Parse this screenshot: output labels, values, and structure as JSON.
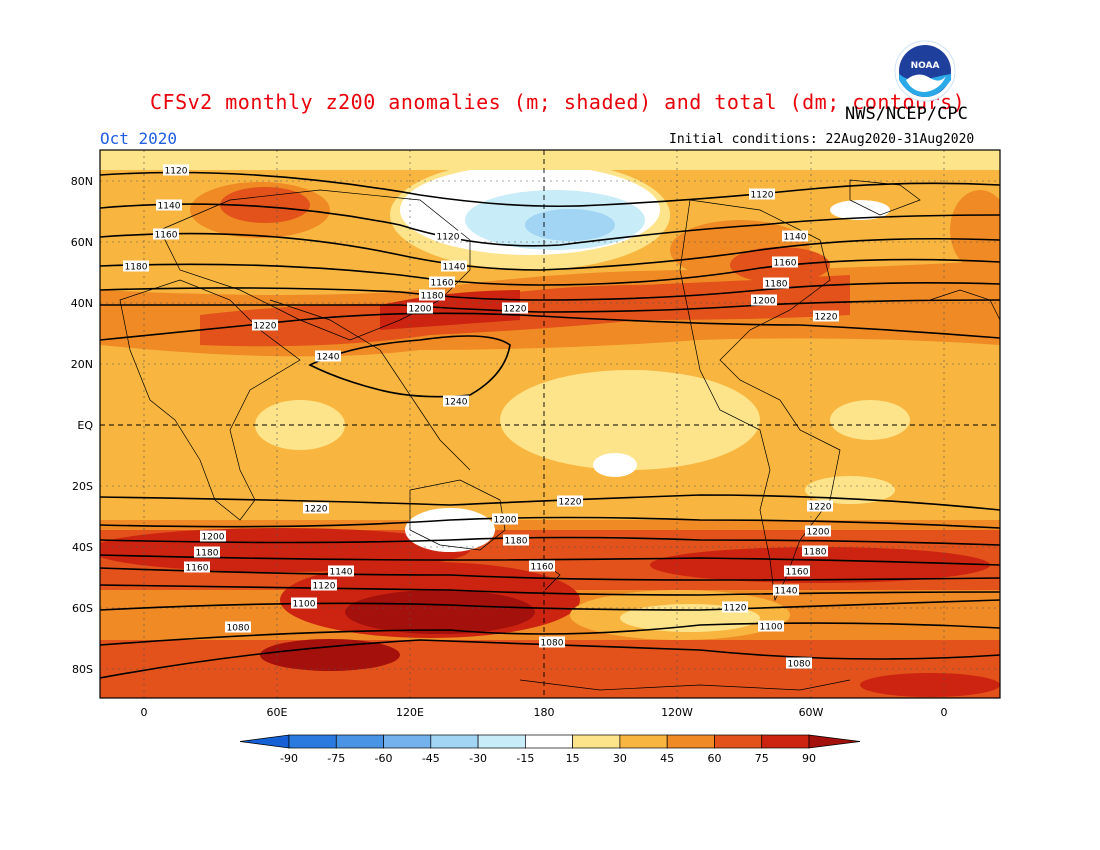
{
  "header": {
    "title": "CFSv2 monthly z200 anomalies (m; shaded) and total (dm; contours)",
    "agency": "NWS/NCEP/CPC",
    "month": "Oct 2020",
    "initial_conditions": "Initial conditions: 22Aug2020-31Aug2020",
    "logo_text": "NOAA"
  },
  "colors": {
    "title": "#e8000b",
    "month": "#1f5fe0",
    "frame": "#000000"
  },
  "map": {
    "lat_labels": [
      "80N",
      "60N",
      "40N",
      "20N",
      "EQ",
      "20S",
      "40S",
      "60S",
      "80S"
    ],
    "lon_labels": [
      "0",
      "60E",
      "120E",
      "180",
      "120W",
      "60W",
      "0"
    ]
  },
  "colorbar": {
    "labels": [
      "-90",
      "-75",
      "-60",
      "-45",
      "-30",
      "-15",
      "15",
      "30",
      "45",
      "60",
      "75",
      "90"
    ],
    "colors": [
      "#1560d4",
      "#2a7ae0",
      "#4a94e6",
      "#74b2ee",
      "#a2d4f4",
      "#c8ecf8",
      "#ffffff",
      "#fde48a",
      "#f8b640",
      "#ef8a24",
      "#e2521a",
      "#cc2410",
      "#a4100c"
    ]
  },
  "contour_labels": [
    {
      "text": "1120"
    },
    {
      "text": "1140"
    },
    {
      "text": "1160"
    },
    {
      "text": "1180"
    },
    {
      "text": "1220"
    },
    {
      "text": "1120"
    },
    {
      "text": "1140"
    },
    {
      "text": "1160"
    },
    {
      "text": "1180"
    },
    {
      "text": "1200"
    },
    {
      "text": "1220"
    },
    {
      "text": "1120"
    },
    {
      "text": "1140"
    },
    {
      "text": "1160"
    },
    {
      "text": "1180"
    },
    {
      "text": "1200"
    },
    {
      "text": "1220"
    },
    {
      "text": "1240"
    },
    {
      "text": "1240"
    },
    {
      "text": "1220"
    },
    {
      "text": "1220"
    },
    {
      "text": "1220"
    },
    {
      "text": "1200"
    },
    {
      "text": "1180"
    },
    {
      "text": "1160"
    },
    {
      "text": "1200"
    },
    {
      "text": "1180"
    },
    {
      "text": "1160"
    },
    {
      "text": "1140"
    },
    {
      "text": "1120"
    },
    {
      "text": "1100"
    },
    {
      "text": "1080"
    },
    {
      "text": "1200"
    },
    {
      "text": "1180"
    },
    {
      "text": "1160"
    },
    {
      "text": "1120"
    },
    {
      "text": "1080"
    },
    {
      "text": "1200"
    },
    {
      "text": "1180"
    },
    {
      "text": "1160"
    },
    {
      "text": "1140"
    },
    {
      "text": "1100"
    },
    {
      "text": "1080"
    }
  ]
}
